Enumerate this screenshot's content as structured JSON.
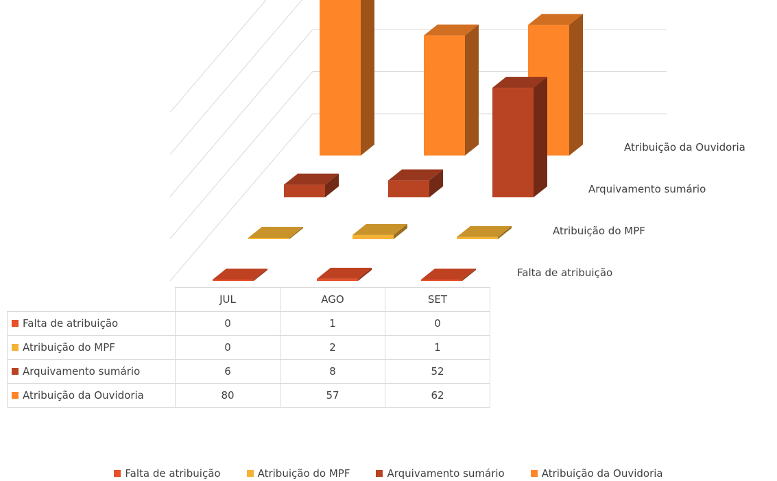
{
  "chart_data": {
    "type": "bar",
    "categories": [
      "JUL",
      "AGO",
      "SET"
    ],
    "series": [
      {
        "name": "Falta de atribuição",
        "values": [
          0,
          1,
          0
        ],
        "color": "#e8502a"
      },
      {
        "name": "Atribuição do MPF",
        "values": [
          0,
          2,
          1
        ],
        "color": "#f5b335"
      },
      {
        "name": "Arquivamento sumário",
        "values": [
          6,
          8,
          52
        ],
        "color": "#b84424"
      },
      {
        "name": "Atribuição da Ouvidoria",
        "values": [
          80,
          57,
          62
        ],
        "color": "#fe8628"
      }
    ],
    "title": "",
    "xlabel": "",
    "ylabel": "",
    "ylim": [
      0,
      90
    ],
    "grid": true,
    "legend": "bottom",
    "data_table": true
  }
}
